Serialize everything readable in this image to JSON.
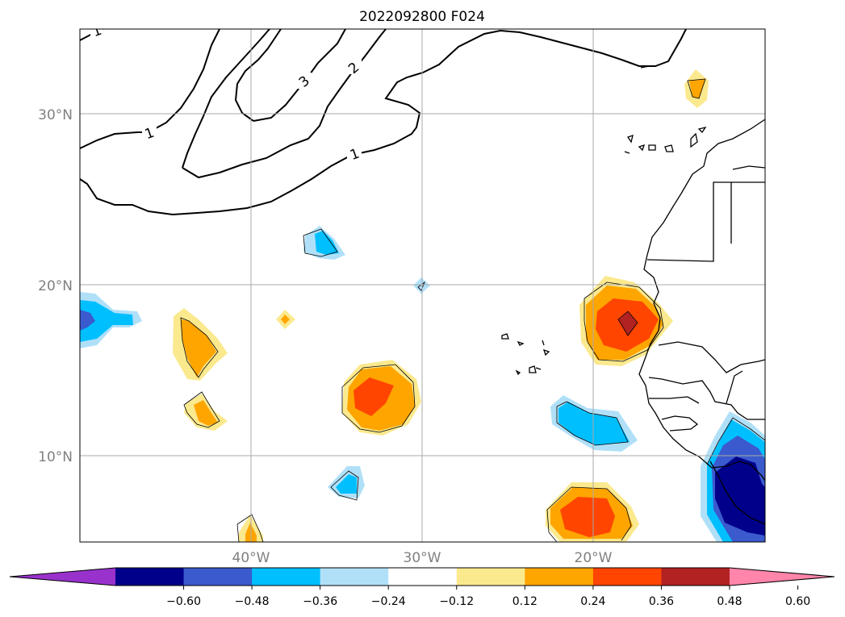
{
  "title": "2022092800 F024",
  "map": {
    "lat_labels": [
      "30°N",
      "20°N",
      "10°N"
    ],
    "lon_labels": [
      "40°W",
      "30°W",
      "20°W"
    ],
    "gridlines": true
  },
  "contour_labels": [
    "1",
    "3",
    "2",
    "1",
    "1"
  ],
  "colorbar": {
    "orientation": "horizontal",
    "extend": "both",
    "levels": [
      "−0.60",
      "−0.48",
      "−0.36",
      "−0.24",
      "−0.12",
      "0.12",
      "0.24",
      "0.36",
      "0.48",
      "0.60"
    ],
    "colors": [
      "#9932cc",
      "#00008b",
      "#3a5acd",
      "#00bfff",
      "#b0e0f8",
      "#ffffff",
      "#fbe98e",
      "#ffa500",
      "#ff4500",
      "#b22222",
      "#ff85aa"
    ]
  },
  "fill_colors": {
    "yellow": "#fbe98e",
    "orange": "#ffa500",
    "red": "#ff4500",
    "darkred": "#b22222",
    "lightblue": "#b0e0f8",
    "blue": "#00bfff",
    "royal": "#3a5acd",
    "navy": "#00008b"
  }
}
